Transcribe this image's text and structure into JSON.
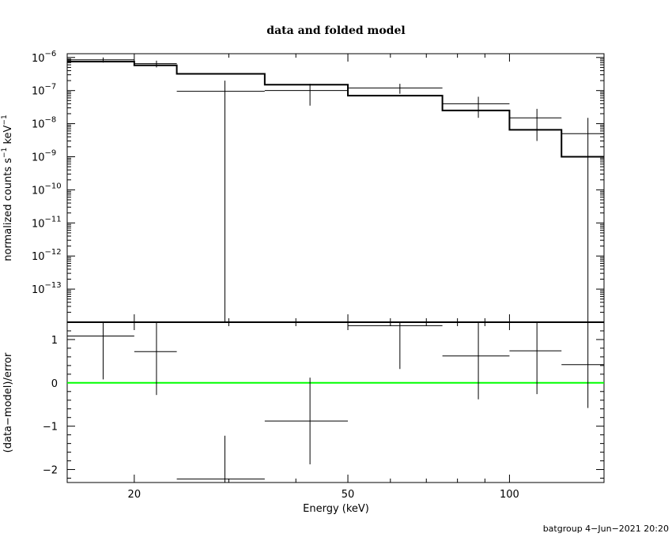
{
  "chart_data": [
    {
      "type": "line",
      "panel": "top",
      "title": "data and folded model",
      "xlabel": "",
      "ylabel": "normalized counts s",
      "ylabel_unit": "keV",
      "ylabel_sup": "−1",
      "yscale": "log",
      "xscale": "log",
      "ylim": [
        1e-14,
        1.3e-06
      ],
      "xlim": [
        15,
        150
      ],
      "y_ticks": [
        {
          "base": "10",
          "exp": "−6",
          "value": 1e-06
        },
        {
          "base": "10",
          "exp": "−7",
          "value": 1e-07
        },
        {
          "base": "10",
          "exp": "−8",
          "value": 1e-08
        },
        {
          "base": "10",
          "exp": "−9",
          "value": 1e-09
        },
        {
          "base": "10",
          "exp": "−10",
          "value": 1e-10
        },
        {
          "base": "10",
          "exp": "−11",
          "value": 1e-11
        },
        {
          "base": "10",
          "exp": "−12",
          "value": 1e-12
        },
        {
          "base": "10",
          "exp": "−13",
          "value": 1e-13
        }
      ],
      "series": [
        {
          "role": "data",
          "points": [
            {
              "x": 17.5,
              "xlo": 15,
              "xhi": 20,
              "y": 8.5e-07,
              "ylo": 7e-07,
              "yhi": 1e-06
            },
            {
              "x": 22,
              "xlo": 20,
              "xhi": 24,
              "y": 6.5e-07,
              "ylo": 5e-07,
              "yhi": 8e-07
            },
            {
              "x": 29.5,
              "xlo": 24,
              "xhi": 35,
              "y": 9.5e-08,
              "ylo": 1e-14,
              "yhi": 2e-07
            },
            {
              "x": 42.5,
              "xlo": 35,
              "xhi": 50,
              "y": 1e-07,
              "ylo": 3.5e-08,
              "yhi": 1.6e-07
            },
            {
              "x": 62.5,
              "xlo": 50,
              "xhi": 75,
              "y": 1.2e-07,
              "ylo": 8e-08,
              "yhi": 1.6e-07
            },
            {
              "x": 87.5,
              "xlo": 75,
              "xhi": 100,
              "y": 4e-08,
              "ylo": 1.5e-08,
              "yhi": 6.5e-08
            },
            {
              "x": 112.5,
              "xlo": 100,
              "xhi": 125,
              "y": 1.5e-08,
              "ylo": 3e-09,
              "yhi": 2.8e-08
            },
            {
              "x": 140,
              "xlo": 125,
              "xhi": 150,
              "y": 5e-09,
              "ylo": 1e-14,
              "yhi": 1.5e-08
            }
          ]
        },
        {
          "role": "model",
          "steps": [
            {
              "xlo": 15,
              "xhi": 20,
              "y": 7.5e-07
            },
            {
              "xlo": 20,
              "xhi": 24,
              "y": 5.8e-07
            },
            {
              "xlo": 24,
              "xhi": 35,
              "y": 3.2e-07
            },
            {
              "xlo": 35,
              "xhi": 50,
              "y": 1.5e-07
            },
            {
              "xlo": 50,
              "xhi": 75,
              "y": 7e-08
            },
            {
              "xlo": 75,
              "xhi": 100,
              "y": 2.5e-08
            },
            {
              "xlo": 100,
              "xhi": 125,
              "y": 6.5e-09
            },
            {
              "xlo": 125,
              "xhi": 150,
              "y": 1e-09
            }
          ]
        }
      ]
    },
    {
      "type": "scatter",
      "panel": "bottom",
      "xlabel": "Energy (keV)",
      "ylabel": "(data−model)/error",
      "xscale": "log",
      "xlim": [
        15,
        150
      ],
      "ylim": [
        -2.3,
        1.4
      ],
      "y_ticks": [
        {
          "label": "1",
          "value": 1
        },
        {
          "label": "0",
          "value": 0
        },
        {
          "label": "−1",
          "value": -1
        },
        {
          "label": "−2",
          "value": -2
        }
      ],
      "x_ticks": [
        {
          "label": "20",
          "value": 20
        },
        {
          "label": "50",
          "value": 50
        },
        {
          "label": "100",
          "value": 100
        }
      ],
      "zero_line_color": "#00ff00",
      "points": [
        {
          "x": 17.5,
          "xlo": 15,
          "xhi": 20,
          "y": 1.08,
          "ylo": 0.08,
          "yhi": 2.08
        },
        {
          "x": 22,
          "xlo": 20,
          "xhi": 24,
          "y": 0.72,
          "ylo": -0.28,
          "yhi": 1.72
        },
        {
          "x": 29.5,
          "xlo": 24,
          "xhi": 35,
          "y": -2.22,
          "ylo": -3.22,
          "yhi": -1.22
        },
        {
          "x": 42.5,
          "xlo": 35,
          "xhi": 50,
          "y": -0.88,
          "ylo": -1.88,
          "yhi": 0.12
        },
        {
          "x": 62.5,
          "xlo": 50,
          "xhi": 75,
          "y": 1.32,
          "ylo": 0.32,
          "yhi": 2.32
        },
        {
          "x": 87.5,
          "xlo": 75,
          "xhi": 100,
          "y": 0.62,
          "ylo": -0.38,
          "yhi": 1.62
        },
        {
          "x": 112.5,
          "xlo": 100,
          "xhi": 125,
          "y": 0.74,
          "ylo": -0.26,
          "yhi": 1.74
        },
        {
          "x": 140,
          "xlo": 125,
          "xhi": 150,
          "y": 0.42,
          "ylo": -0.58,
          "yhi": 1.42
        }
      ]
    }
  ],
  "footer": "batgroup  4−Jun−2021 20:20",
  "colors": {
    "axes": "#000000",
    "zero_line": "#00ff00",
    "background": "#ffffff"
  }
}
